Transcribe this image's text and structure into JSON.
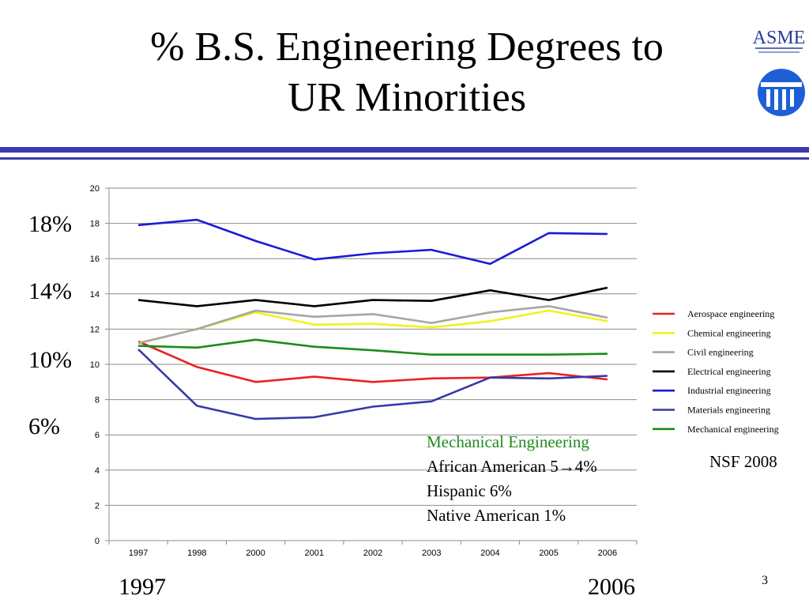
{
  "slide": {
    "title_line1": "% B.S. Engineering Degrees to",
    "title_line2": "UR Minorities",
    "logo_text": "ASME",
    "side_labels": [
      "18%",
      "14%",
      "10%",
      "6%"
    ],
    "note": {
      "heading": "Mechanical Engineering",
      "line1": "African American 5→4%",
      "line2": "Hispanic 6%",
      "line3": "Native American 1%"
    },
    "source": "NSF 2008",
    "year_start": "1997",
    "year_end": "2006",
    "page_number": "3",
    "colors": {
      "rule": "#3a3ab0",
      "note_heading": "#1f8a1f"
    }
  },
  "chart_data": {
    "type": "line",
    "categories": [
      "1997",
      "1998",
      "2000",
      "2001",
      "2002",
      "2003",
      "2004",
      "2005",
      "2006"
    ],
    "ylim": [
      0,
      20
    ],
    "yticks": [
      0,
      2,
      4,
      6,
      8,
      10,
      12,
      14,
      16,
      18,
      20
    ],
    "grid": "horizontal",
    "legend_position": "right",
    "series": [
      {
        "name": "Aerospace engineering",
        "color": "#e8231f",
        "values": [
          11.3,
          9.85,
          9.0,
          9.3,
          9.0,
          9.2,
          9.25,
          9.5,
          9.15
        ]
      },
      {
        "name": "Chemical engineering",
        "color": "#f2f21a",
        "values": [
          11.2,
          12.0,
          12.95,
          12.25,
          12.3,
          12.1,
          12.45,
          13.05,
          12.45
        ]
      },
      {
        "name": "Civil engineering",
        "color": "#a6a6a6",
        "values": [
          11.2,
          12.0,
          13.05,
          12.7,
          12.85,
          12.35,
          12.95,
          13.3,
          12.65
        ]
      },
      {
        "name": "Electrical engineering",
        "color": "#000000",
        "values": [
          13.65,
          13.3,
          13.65,
          13.3,
          13.65,
          13.6,
          14.2,
          13.65,
          14.35
        ]
      },
      {
        "name": "Industrial engineering",
        "color": "#1a1ad9",
        "values": [
          17.9,
          18.2,
          17.0,
          15.95,
          16.3,
          16.5,
          15.7,
          17.45,
          17.4
        ]
      },
      {
        "name": "Materials engineering",
        "color": "#3838a8",
        "values": [
          10.85,
          7.65,
          6.9,
          7.0,
          7.6,
          7.9,
          9.25,
          9.2,
          9.35
        ]
      },
      {
        "name": "Mechanical engineering",
        "color": "#1a8c1a",
        "values": [
          11.05,
          10.95,
          11.4,
          11.0,
          10.8,
          10.55,
          10.55,
          10.55,
          10.6
        ]
      }
    ]
  }
}
